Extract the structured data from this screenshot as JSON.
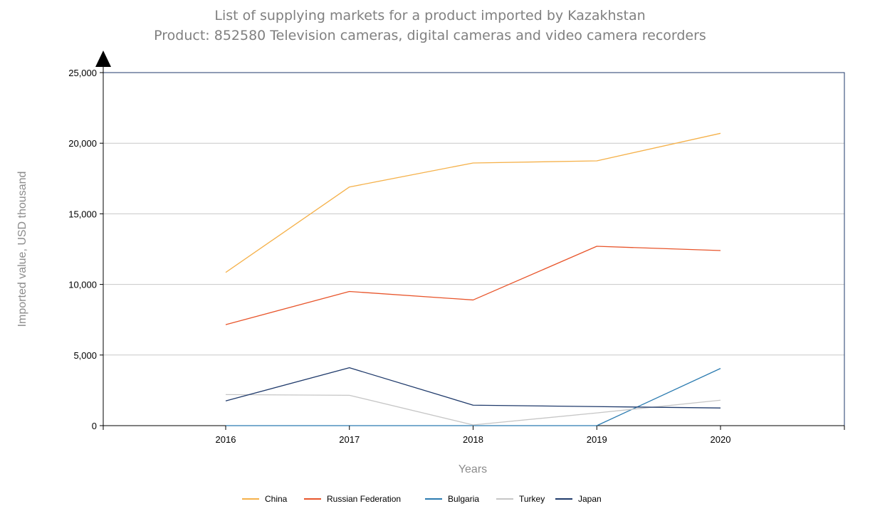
{
  "chart_data": {
    "type": "line",
    "title": "List of supplying markets for a product imported by Kazakhstan",
    "subtitle": "Product: 852580 Television cameras, digital cameras and video camera recorders",
    "xlabel": "Years",
    "ylabel": "Imported value, USD thousand",
    "x": [
      "2016",
      "2017",
      "2018",
      "2019",
      "2020"
    ],
    "ylim": [
      0,
      25000
    ],
    "yticks": [
      0,
      5000,
      10000,
      15000,
      20000,
      25000
    ],
    "ytick_labels": [
      "0",
      "5,000",
      "10,000",
      "15,000",
      "20,000",
      "25,000"
    ],
    "grid": "horizontal",
    "legend_position": "bottom",
    "series": [
      {
        "name": "China",
        "color": "#f5b14a",
        "values": [
          10850,
          16900,
          18600,
          18750,
          20700
        ]
      },
      {
        "name": "Russian Federation",
        "color": "#e8552b",
        "values": [
          7150,
          9500,
          8900,
          12700,
          12400
        ]
      },
      {
        "name": "Bulgaria",
        "color": "#2b7bb0",
        "values": [
          0,
          0,
          0,
          0,
          4050
        ]
      },
      {
        "name": "Turkey",
        "color": "#c6c6c6",
        "values": [
          2200,
          2150,
          50,
          900,
          1800
        ]
      },
      {
        "name": "Japan",
        "color": "#1f3a6b",
        "values": [
          1750,
          4100,
          1450,
          1350,
          1250
        ]
      }
    ]
  }
}
